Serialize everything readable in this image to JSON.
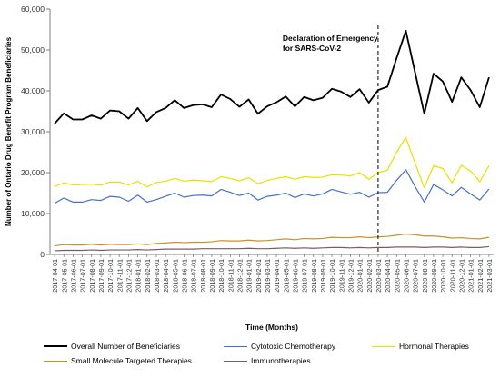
{
  "chart_data": {
    "type": "line",
    "xlabel": "Time (Months)",
    "ylabel": "Number of Ontario Drug Benefit Program Beneficiaries",
    "ylim": [
      0,
      60000
    ],
    "yticks": [
      0,
      10000,
      20000,
      30000,
      40000,
      50000,
      60000
    ],
    "ytick_labels": [
      "0",
      "10,000",
      "20,000",
      "30,000",
      "40,000",
      "50,000",
      "60,000"
    ],
    "grid": false,
    "legend_position": "bottom",
    "annotation": {
      "text_line1": "Declaration of Emergency",
      "text_line2": "for SARS-CoV-2",
      "at": "2020-03-01",
      "style": "dashed vertical line"
    },
    "x": [
      "2017-04-01",
      "2017-05-01",
      "2017-06-01",
      "2017-07-01",
      "2017-08-01",
      "2017-09-01",
      "2017-10-01",
      "2017-11-01",
      "2017-12-01",
      "2018-01-01",
      "2018-02-01",
      "2018-03-01",
      "2018-04-01",
      "2018-05-01",
      "2018-06-01",
      "2018-07-01",
      "2018-08-01",
      "2018-09-01",
      "2018-10-01",
      "2018-11-01",
      "2018-12-01",
      "2019-01-01",
      "2019-02-01",
      "2019-03-01",
      "2019-04-01",
      "2019-05-01",
      "2019-06-01",
      "2019-07-01",
      "2019-08-01",
      "2019-09-01",
      "2019-10-01",
      "2019-11-01",
      "2019-12-01",
      "2020-01-01",
      "2020-02-01",
      "2020-03-01",
      "2020-04-01",
      "2020-05-01",
      "2020-06-01",
      "2020-07-01",
      "2020-08-01",
      "2020-09-01",
      "2020-10-01",
      "2020-11-01",
      "2020-12-01",
      "2021-01-01",
      "2021-02-01",
      "2021-03-01"
    ],
    "series": [
      {
        "name": "Overall Number of Beneficiaries",
        "color": "#000000",
        "width": 1.8,
        "values": [
          32000,
          34500,
          33000,
          33000,
          34000,
          33200,
          35200,
          35000,
          33200,
          35800,
          32600,
          34800,
          35800,
          37700,
          35800,
          36500,
          36700,
          36000,
          39100,
          38000,
          36100,
          37900,
          34400,
          36200,
          37200,
          38600,
          36200,
          38500,
          37700,
          38300,
          40500,
          39800,
          38500,
          40400,
          37100,
          40200,
          41000,
          48000,
          54700,
          44500,
          34400,
          44200,
          42300,
          37300,
          43300,
          40200,
          36000,
          43300
        ]
      },
      {
        "name": "Cytotoxic Chemotherapy",
        "color": "#4472c4",
        "width": 1.2,
        "values": [
          12500,
          13800,
          12800,
          12800,
          13400,
          13200,
          14200,
          14000,
          13000,
          14500,
          12800,
          13400,
          14200,
          15000,
          14000,
          14400,
          14500,
          14300,
          15900,
          15200,
          14400,
          15000,
          13300,
          14200,
          14500,
          15000,
          13900,
          14800,
          14300,
          14800,
          15900,
          15300,
          14700,
          15200,
          14000,
          15100,
          15200,
          18100,
          20700,
          16600,
          12800,
          17100,
          15800,
          14300,
          16400,
          14800,
          13300,
          16000
        ]
      },
      {
        "name": "Hormonal Therapies",
        "color": "#e8e000",
        "width": 1.2,
        "values": [
          16600,
          17500,
          17000,
          17100,
          17200,
          16900,
          17700,
          17700,
          17000,
          17900,
          16500,
          17600,
          17900,
          18600,
          17900,
          18200,
          18000,
          17800,
          19000,
          18600,
          18000,
          18800,
          17300,
          18100,
          18600,
          19000,
          18400,
          19000,
          18800,
          18900,
          19500,
          19400,
          19200,
          20000,
          18400,
          20000,
          20600,
          25000,
          28600,
          22300,
          16300,
          21700,
          21000,
          17500,
          21800,
          20400,
          17800,
          21700
        ]
      },
      {
        "name": "Small Molecule Targeted Therapies",
        "color": "#c8922a",
        "width": 1.2,
        "values": [
          2100,
          2400,
          2300,
          2300,
          2500,
          2300,
          2500,
          2400,
          2400,
          2600,
          2400,
          2700,
          2800,
          3000,
          2900,
          3000,
          3000,
          3100,
          3400,
          3300,
          3300,
          3500,
          3300,
          3400,
          3600,
          3800,
          3600,
          3900,
          3800,
          3900,
          4200,
          4100,
          4100,
          4300,
          4100,
          4300,
          4400,
          4700,
          5000,
          4800,
          4500,
          4500,
          4300,
          4000,
          4100,
          3900,
          3800,
          4200
        ]
      },
      {
        "name": "Immunotherapies",
        "color": "#7a5a6a",
        "width": 1.2,
        "values": [
          900,
          1000,
          1000,
          1000,
          1100,
          1000,
          1100,
          1100,
          1100,
          1200,
          1100,
          1200,
          1300,
          1300,
          1300,
          1300,
          1400,
          1400,
          1400,
          1400,
          1400,
          1500,
          1400,
          1400,
          1500,
          1600,
          1500,
          1600,
          1500,
          1600,
          1700,
          1700,
          1600,
          1700,
          1600,
          1700,
          1700,
          1800,
          1800,
          1800,
          1700,
          1800,
          1800,
          1700,
          1800,
          1700,
          1700,
          1900
        ]
      }
    ]
  }
}
